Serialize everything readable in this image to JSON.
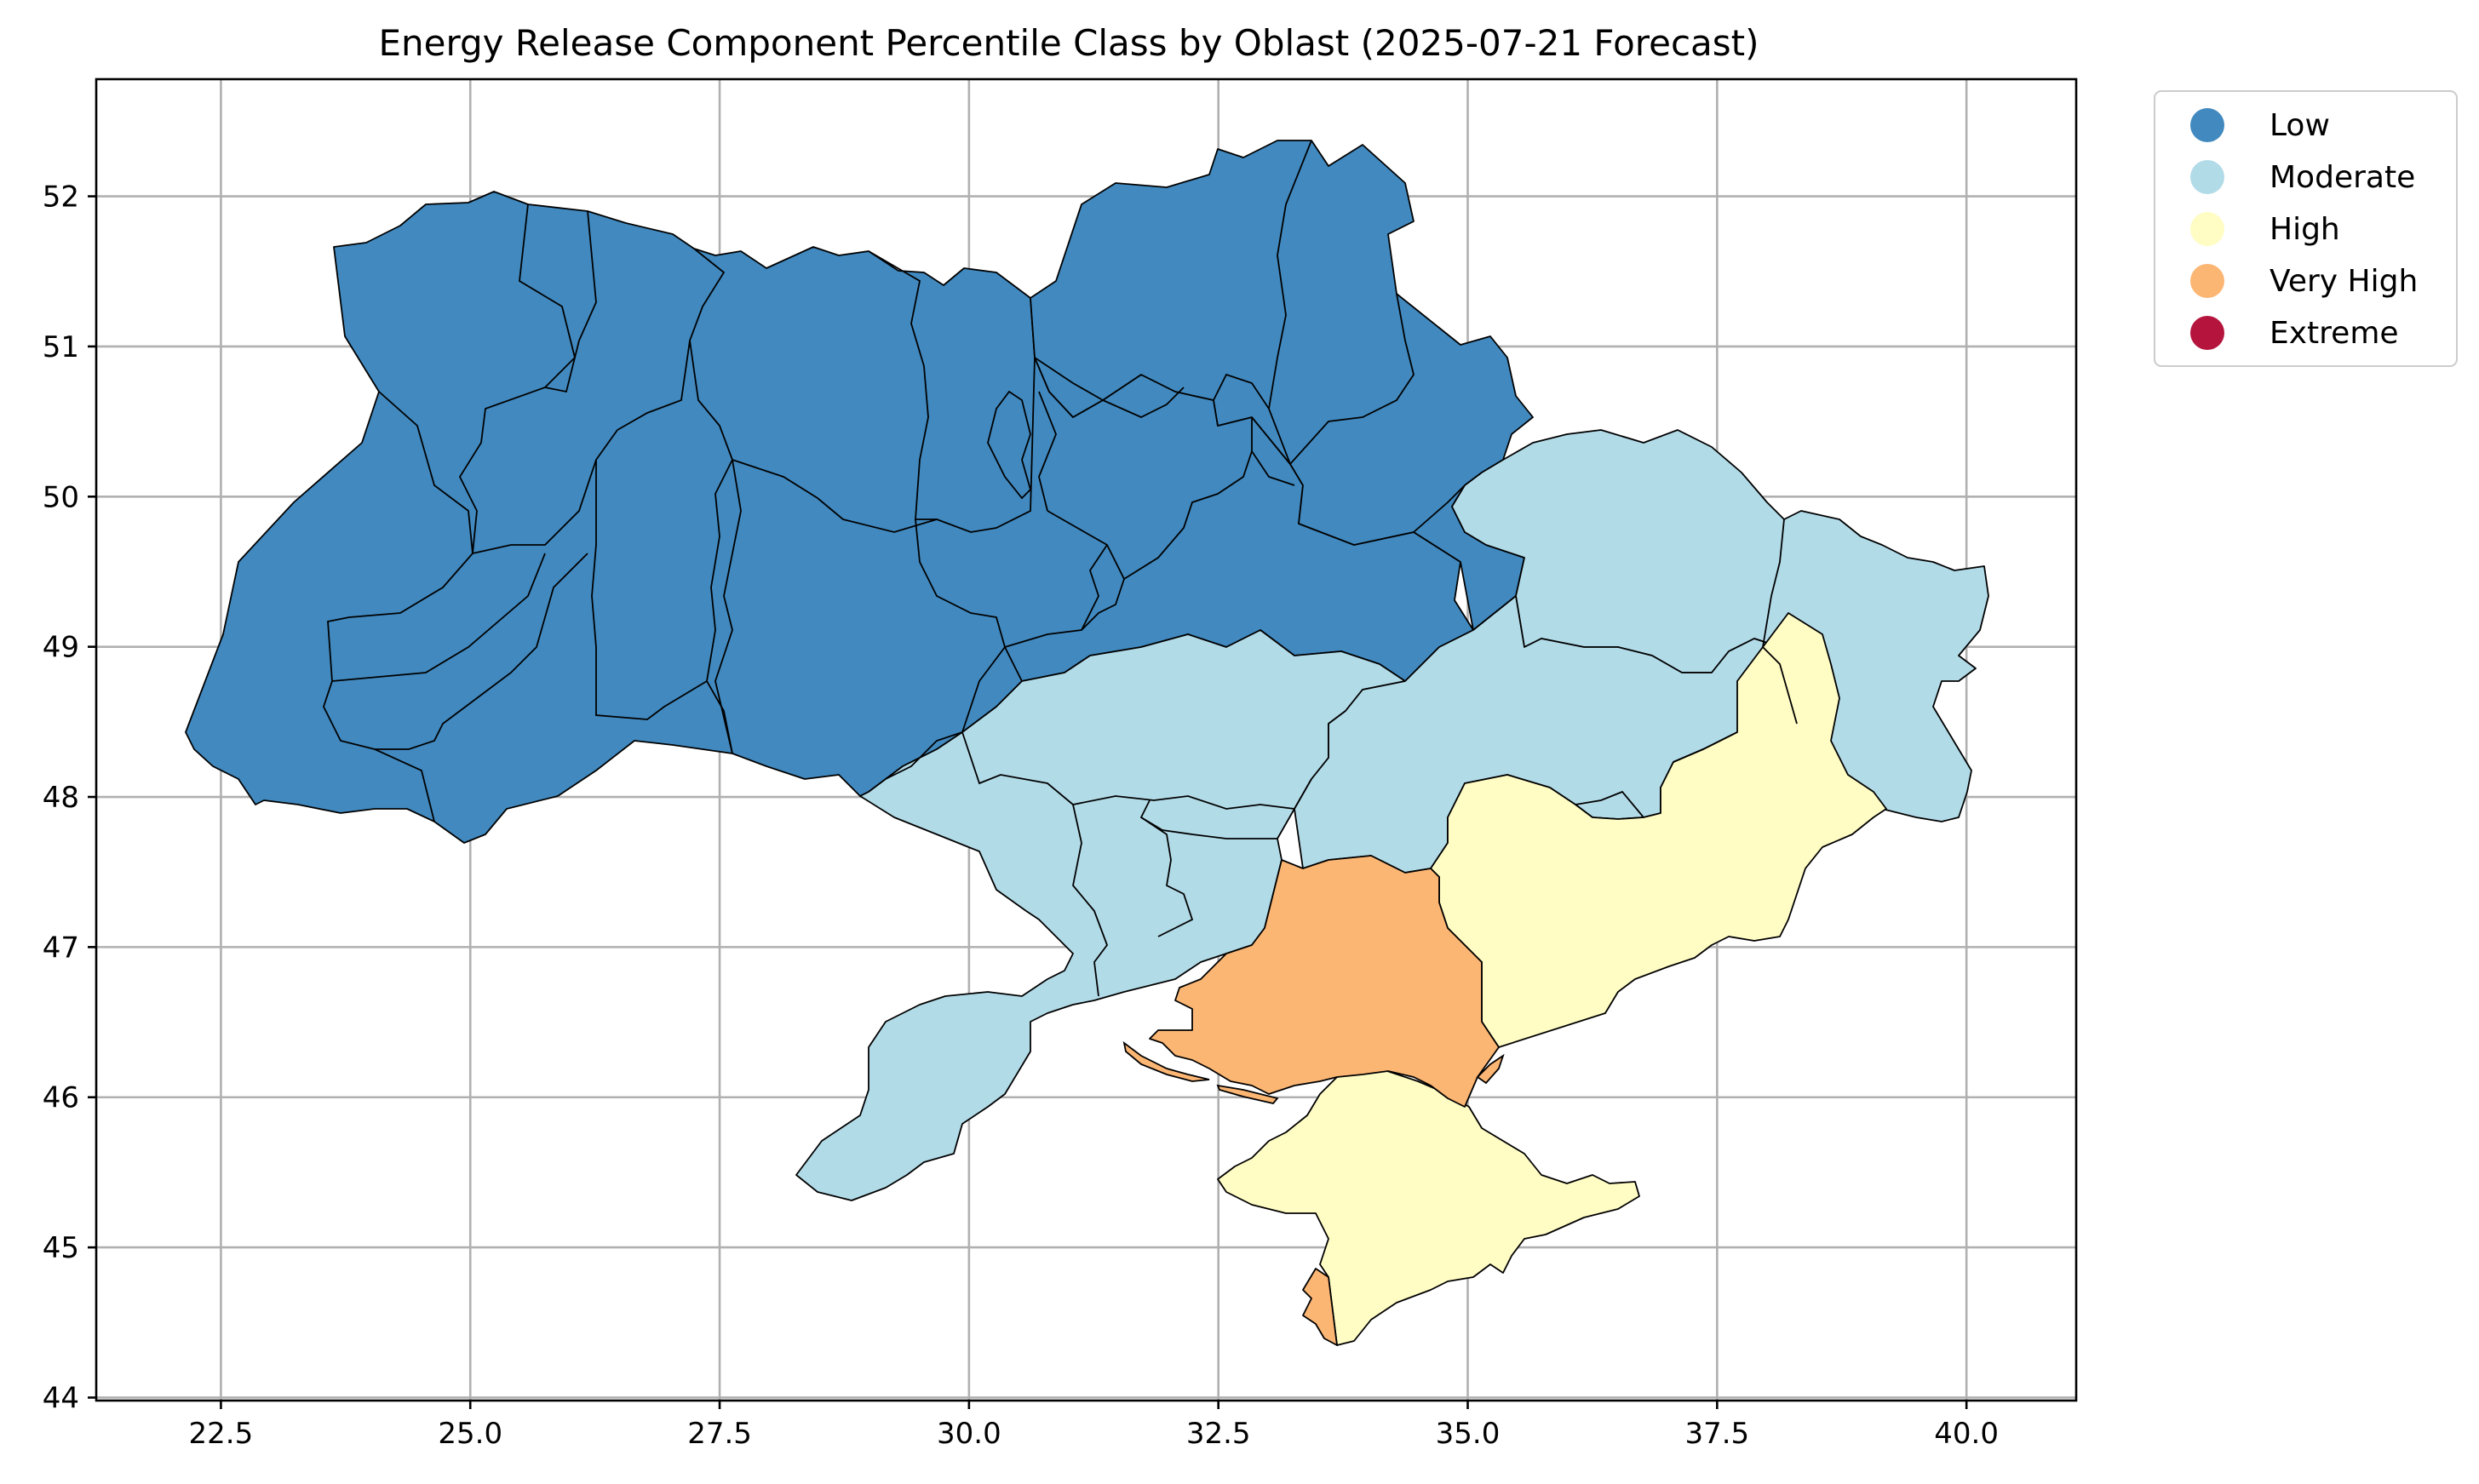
{
  "title": "Energy Release Component Percentile Class by Oblast (2025-07-21 Forecast)",
  "x_ticks": [
    "22.5",
    "25.0",
    "27.5",
    "30.0",
    "32.5",
    "35.0",
    "37.5",
    "40.0"
  ],
  "y_ticks": [
    "44",
    "45",
    "46",
    "47",
    "48",
    "49",
    "50",
    "51",
    "52"
  ],
  "x_tick_values": [
    22.5,
    25.0,
    27.5,
    30.0,
    32.5,
    35.0,
    37.5,
    40.0
  ],
  "y_tick_values": [
    44,
    45,
    46,
    47,
    48,
    49,
    50,
    51,
    52
  ],
  "xlim": [
    21.25,
    41.1
  ],
  "ylim": [
    43.98,
    52.78
  ],
  "grid": true,
  "legend": {
    "position": "outside-right-top",
    "items": [
      {
        "label": "Low",
        "color": "#4189bf"
      },
      {
        "label": "Moderate",
        "color": "#b2dbe8"
      },
      {
        "label": "High",
        "color": "#fffcc4"
      },
      {
        "label": "Very High",
        "color": "#fcb674"
      },
      {
        "label": "Extreme",
        "color": "#b5143d"
      }
    ]
  }
}
